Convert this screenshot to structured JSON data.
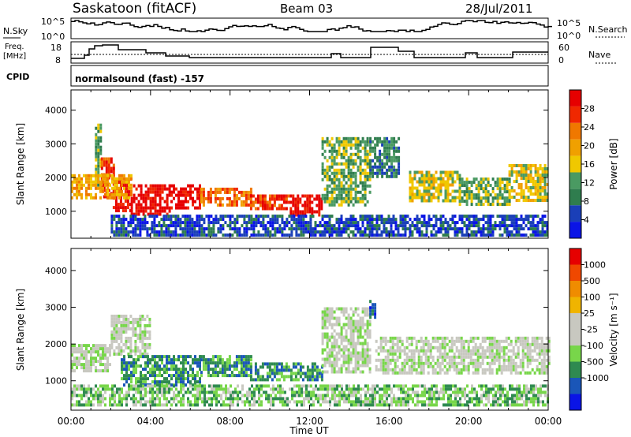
{
  "header": {
    "station": "Saskatoon (fitACF)",
    "beam": "Beam 03",
    "date": "28/Jul/2011"
  },
  "noise_panel": {
    "left_label": "N.Sky",
    "left_ticks": [
      "10^5",
      "10^0"
    ],
    "right_label": "N.Search",
    "right_ticks": [
      "10^5",
      "10^0"
    ]
  },
  "freq_panel": {
    "left_label_1": "Freq.",
    "left_label_2": "[MHz]",
    "left_ticks": [
      "18",
      "8"
    ],
    "right_label": "Nave",
    "right_ticks": [
      "60",
      "0"
    ]
  },
  "cpid": {
    "label": "CPID",
    "value": "normalsound (fast) -157"
  },
  "colors": {
    "power": [
      "#0a14e6",
      "#1a3fb8",
      "#2f7d4e",
      "#4a9a62",
      "#f0c800",
      "#f0a000",
      "#f07800",
      "#f02800",
      "#e60000"
    ],
    "velocity": [
      "#e60000",
      "#f04800",
      "#f08c00",
      "#f0b400",
      "#c8c8c0",
      "#c8c8c0",
      "#78d64a",
      "#2f8a50",
      "#1a56b8",
      "#0a14e6"
    ]
  },
  "chart_data": [
    {
      "type": "heatmap",
      "title": "",
      "xlabel": "Time UT",
      "ylabel": "Slant Range [km]",
      "x_ticks": [
        "00:00",
        "04:00",
        "08:00",
        "12:00",
        "16:00",
        "20:00",
        "00:00"
      ],
      "xlim": [
        0,
        24
      ],
      "ylim": [
        200,
        4600
      ],
      "y_ticks": [
        1000,
        2000,
        3000,
        4000
      ],
      "colorbar": {
        "label": "Power [dB]",
        "ticks": [
          4,
          8,
          12,
          16,
          20,
          24,
          28
        ],
        "range": [
          0,
          32
        ]
      },
      "regions": [
        {
          "t": [
            1.2,
            1.5
          ],
          "r": [
            1800,
            3600
          ],
          "level": 3
        },
        {
          "t": [
            1.5,
            2.1
          ],
          "r": [
            1400,
            2600
          ],
          "level": 7
        },
        {
          "t": [
            2.1,
            3.0
          ],
          "r": [
            1000,
            2000
          ],
          "level": 8
        },
        {
          "t": [
            3.0,
            5.0
          ],
          "r": [
            900,
            1800
          ],
          "level": 8
        },
        {
          "t": [
            5.0,
            6.5
          ],
          "r": [
            1100,
            1800
          ],
          "level": 8
        },
        {
          "t": [
            6.5,
            9.0
          ],
          "r": [
            1200,
            1700
          ],
          "level": 6
        },
        {
          "t": [
            9.0,
            11.0
          ],
          "r": [
            1100,
            1500
          ],
          "level": 7
        },
        {
          "t": [
            11.0,
            12.6
          ],
          "r": [
            900,
            1500
          ],
          "level": 8
        },
        {
          "t": [
            12.6,
            15.0
          ],
          "r": [
            1200,
            3200
          ],
          "level": 3
        },
        {
          "t": [
            15.0,
            16.5
          ],
          "r": [
            2000,
            3200
          ],
          "level": 2
        },
        {
          "t": [
            17.0,
            19.5
          ],
          "r": [
            1300,
            2200
          ],
          "level": 4
        },
        {
          "t": [
            19.5,
            22.0
          ],
          "r": [
            1200,
            2000
          ],
          "level": 3
        },
        {
          "t": [
            22.0,
            24.0
          ],
          "r": [
            1300,
            2400
          ],
          "level": 4
        },
        {
          "t": [
            0.0,
            3.0
          ],
          "r": [
            1400,
            2100
          ],
          "level": 5
        },
        {
          "t": [
            2.0,
            12.0
          ],
          "r": [
            300,
            900
          ],
          "level": 1
        },
        {
          "t": [
            12.0,
            24.0
          ],
          "r": [
            300,
            900
          ],
          "level": 1
        }
      ]
    },
    {
      "type": "heatmap",
      "title": "",
      "xlabel": "Time UT",
      "ylabel": "Slant Range [km]",
      "x_ticks": [
        "00:00",
        "04:00",
        "08:00",
        "12:00",
        "16:00",
        "20:00",
        "00:00"
      ],
      "xlim": [
        0,
        24
      ],
      "ylim": [
        200,
        4600
      ],
      "y_ticks": [
        1000,
        2000,
        3000,
        4000
      ],
      "colorbar": {
        "label": "Velocity [m s⁻¹]",
        "ticks": [
          "1000",
          "500",
          "100",
          "25",
          "-25",
          "-100",
          "-500",
          "-1000"
        ]
      },
      "regions": [
        {
          "t": [
            0.0,
            2.0
          ],
          "r": [
            1300,
            2000
          ],
          "level": 4
        },
        {
          "t": [
            2.0,
            4.0
          ],
          "r": [
            1700,
            2800
          ],
          "level": 4
        },
        {
          "t": [
            2.5,
            6.5
          ],
          "r": [
            900,
            1700
          ],
          "level": 2
        },
        {
          "t": [
            6.5,
            9.0
          ],
          "r": [
            1100,
            1700
          ],
          "level": 2
        },
        {
          "t": [
            9.0,
            12.6
          ],
          "r": [
            1000,
            1500
          ],
          "level": 2
        },
        {
          "t": [
            12.6,
            15.0
          ],
          "r": [
            1200,
            3000
          ],
          "level": 4
        },
        {
          "t": [
            15.0,
            15.3
          ],
          "r": [
            2700,
            3200
          ],
          "level": 1
        },
        {
          "t": [
            15.3,
            24.0
          ],
          "r": [
            1200,
            2200
          ],
          "level": 4
        },
        {
          "t": [
            0.0,
            24.0
          ],
          "r": [
            300,
            900
          ],
          "level": 3
        }
      ]
    }
  ]
}
